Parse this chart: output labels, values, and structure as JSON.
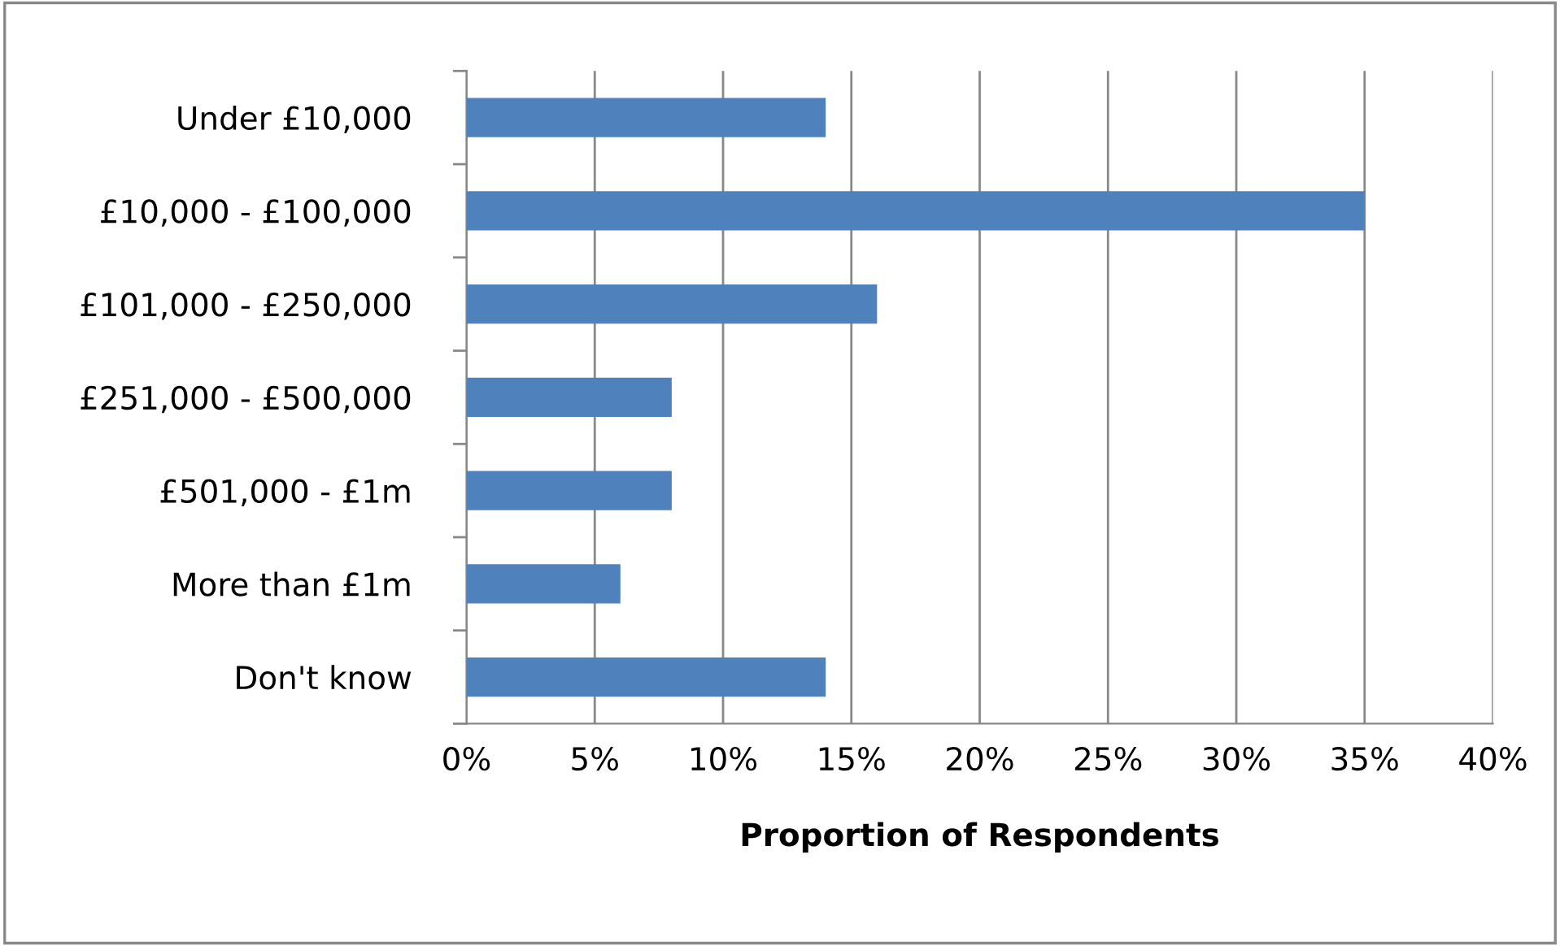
{
  "chart_data": {
    "type": "bar",
    "orientation": "horizontal",
    "categories": [
      "Under £10,000",
      "£10,000 - £100,000",
      "£101,000 - £250,000",
      "£251,000 - £500,000",
      "£501,000 - £1m",
      "More than £1m",
      "Don't know"
    ],
    "values": [
      14,
      35,
      16,
      8,
      8,
      6,
      14
    ],
    "color": "#4f81bd",
    "xlabel": "Proportion of Respondents",
    "xlim": [
      0,
      40
    ],
    "xticks": [
      {
        "value": 0,
        "label": "0%"
      },
      {
        "value": 5,
        "label": "5%"
      },
      {
        "value": 10,
        "label": "10%"
      },
      {
        "value": 15,
        "label": "15%"
      },
      {
        "value": 20,
        "label": "20%"
      },
      {
        "value": 25,
        "label": "25%"
      },
      {
        "value": 30,
        "label": "30%"
      },
      {
        "value": 35,
        "label": "35%"
      },
      {
        "value": 40,
        "label": "40%"
      }
    ],
    "grid": "x"
  }
}
